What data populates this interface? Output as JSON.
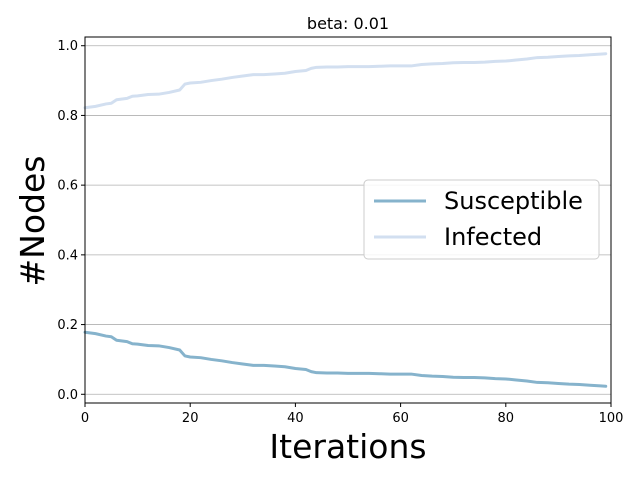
{
  "chart_data": {
    "type": "line",
    "title": "beta: 0.01",
    "xlabel": "Iterations",
    "ylabel": "#Nodes",
    "xlim": [
      0,
      100
    ],
    "ylim": [
      -0.025,
      1.025
    ],
    "xticks": [
      "0",
      "20",
      "40",
      "60",
      "80",
      "100"
    ],
    "yticks": [
      "0.0",
      "0.2",
      "0.4",
      "0.6",
      "0.8",
      "1.0"
    ],
    "grid": "horizontal",
    "legend_position": "center-right",
    "x": [
      0,
      2,
      4,
      5,
      6,
      8,
      9,
      10,
      12,
      14,
      16,
      18,
      19,
      20,
      22,
      24,
      26,
      28,
      30,
      32,
      34,
      36,
      38,
      40,
      42,
      43,
      44,
      46,
      48,
      50,
      52,
      54,
      56,
      58,
      60,
      62,
      64,
      66,
      68,
      70,
      72,
      74,
      76,
      78,
      80,
      82,
      84,
      86,
      88,
      90,
      92,
      94,
      96,
      98,
      99
    ],
    "series": [
      {
        "name": "Susceptible",
        "color": "#86b3cc",
        "values": [
          0.178,
          0.174,
          0.167,
          0.165,
          0.155,
          0.151,
          0.145,
          0.144,
          0.14,
          0.139,
          0.134,
          0.127,
          0.11,
          0.107,
          0.105,
          0.1,
          0.096,
          0.091,
          0.087,
          0.083,
          0.083,
          0.081,
          0.079,
          0.074,
          0.071,
          0.065,
          0.062,
          0.061,
          0.061,
          0.06,
          0.06,
          0.06,
          0.059,
          0.058,
          0.058,
          0.058,
          0.054,
          0.052,
          0.051,
          0.049,
          0.048,
          0.048,
          0.047,
          0.045,
          0.044,
          0.041,
          0.038,
          0.034,
          0.033,
          0.031,
          0.029,
          0.028,
          0.026,
          0.024,
          0.023
        ]
      },
      {
        "name": "Infected",
        "color": "#d2dff0",
        "values": [
          0.822,
          0.826,
          0.833,
          0.835,
          0.845,
          0.849,
          0.855,
          0.856,
          0.86,
          0.861,
          0.866,
          0.873,
          0.89,
          0.893,
          0.895,
          0.9,
          0.904,
          0.909,
          0.913,
          0.917,
          0.917,
          0.919,
          0.921,
          0.926,
          0.929,
          0.935,
          0.938,
          0.939,
          0.939,
          0.94,
          0.94,
          0.94,
          0.941,
          0.942,
          0.942,
          0.942,
          0.946,
          0.948,
          0.949,
          0.951,
          0.952,
          0.952,
          0.953,
          0.955,
          0.956,
          0.959,
          0.962,
          0.966,
          0.967,
          0.969,
          0.971,
          0.972,
          0.974,
          0.976,
          0.977
        ]
      }
    ]
  }
}
